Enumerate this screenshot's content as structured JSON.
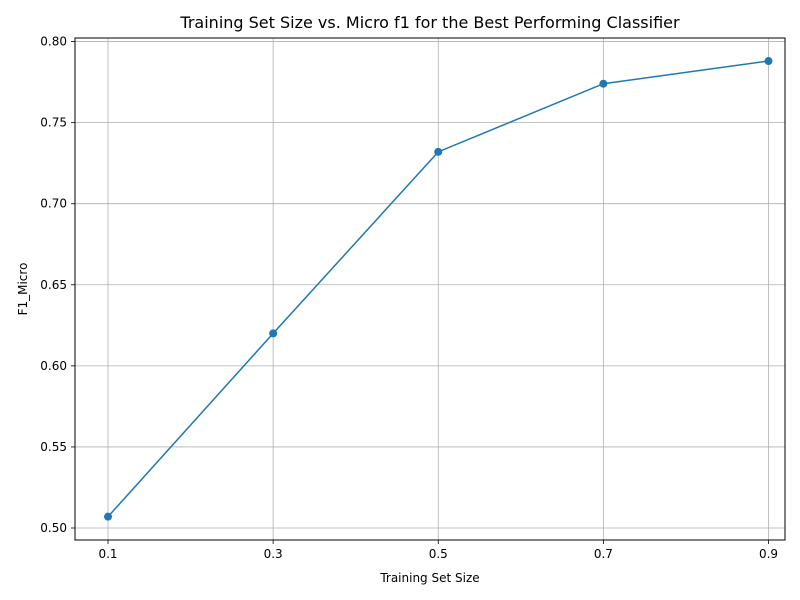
{
  "chart_data": {
    "type": "line",
    "title": "Training Set Size vs. Micro f1 for the Best Performing Classifier",
    "xlabel": "Training Set Size",
    "ylabel": "F1_Micro",
    "x": [
      0.1,
      0.3,
      0.5,
      0.7,
      0.9
    ],
    "series": [
      {
        "values": [
          0.507,
          0.62,
          0.732,
          0.774,
          0.788
        ],
        "color": "#1f77b4",
        "marker": "circle"
      }
    ],
    "xticks": [
      0.1,
      0.3,
      0.5,
      0.7,
      0.9
    ],
    "xtick_labels": [
      "0.1",
      "0.3",
      "0.5",
      "0.7",
      "0.9"
    ],
    "yticks": [
      0.5,
      0.55,
      0.6,
      0.65,
      0.7,
      0.75,
      0.8
    ],
    "ytick_labels": [
      "0.50",
      "0.55",
      "0.60",
      "0.65",
      "0.70",
      "0.75",
      "0.80"
    ],
    "xlim": [
      0.06,
      0.92
    ],
    "ylim": [
      0.4926,
      0.8022
    ],
    "grid": true
  }
}
